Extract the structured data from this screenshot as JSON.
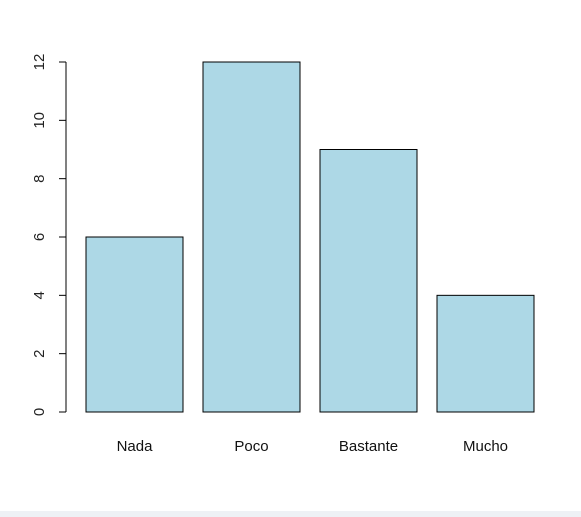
{
  "chart_data": {
    "type": "bar",
    "categories": [
      "Nada",
      "Poco",
      "Bastante",
      "Mucho"
    ],
    "values": [
      6,
      12,
      9,
      4
    ],
    "yticks": [
      0,
      2,
      4,
      6,
      8,
      10,
      12
    ],
    "ylim": [
      0,
      12
    ],
    "bar_color": "#add8e6",
    "bar_stroke": "#000000",
    "axis_color": "#000000",
    "title": "",
    "xlabel": "",
    "ylabel": ""
  }
}
